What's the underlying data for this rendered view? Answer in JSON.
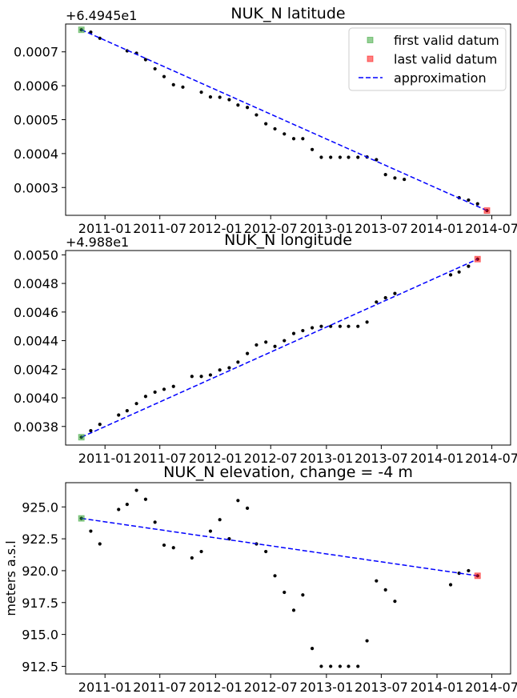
{
  "chart_data": [
    {
      "type": "scatter",
      "title": "NUK_N latitude",
      "ylabel": "",
      "offset_label": "+6.4945e1",
      "x_ticks": [
        "2011-01",
        "2011-07",
        "2012-01",
        "2012-07",
        "2013-01",
        "2013-07",
        "2014-01",
        "2014-07"
      ],
      "y_ticks": [
        0.0003,
        0.0004,
        0.0005,
        0.0006,
        0.0007
      ],
      "y_tick_decimals": 4,
      "ylim": [
        0.000218,
        0.000782
      ],
      "legend": {
        "position": "upper-right",
        "entries": [
          {
            "label": "first valid datum",
            "marker": "square",
            "color": "#2ca02c"
          },
          {
            "label": "last valid datum",
            "marker": "square",
            "color": "#ff0000"
          },
          {
            "label": "approximation",
            "marker": "dashed-line",
            "color": "#0000ff"
          }
        ]
      },
      "series": [
        {
          "role": "data",
          "color": "#000000",
          "points": [
            [
              "2010-10-15",
              0.000765
            ],
            [
              "2010-11-15",
              0.000758
            ],
            [
              "2010-12-15",
              0.00074
            ],
            [
              "2011-03-15",
              0.000703
            ],
            [
              "2011-04-15",
              0.000696
            ],
            [
              "2011-05-15",
              0.000677
            ],
            [
              "2011-06-15",
              0.00065
            ],
            [
              "2011-07-15",
              0.000627
            ],
            [
              "2011-08-15",
              0.000603
            ],
            [
              "2011-09-15",
              0.000596
            ],
            [
              "2011-11-15",
              0.000581
            ],
            [
              "2011-12-15",
              0.000567
            ],
            [
              "2012-01-15",
              0.000566
            ],
            [
              "2012-02-15",
              0.000559
            ],
            [
              "2012-03-15",
              0.000543
            ],
            [
              "2012-04-15",
              0.000536
            ],
            [
              "2012-05-15",
              0.000514
            ],
            [
              "2012-06-15",
              0.000488
            ],
            [
              "2012-07-15",
              0.000473
            ],
            [
              "2012-08-15",
              0.000458
            ],
            [
              "2012-09-15",
              0.000444
            ],
            [
              "2012-10-15",
              0.000444
            ],
            [
              "2012-11-15",
              0.000412
            ],
            [
              "2012-12-15",
              0.000389
            ],
            [
              "2013-01-15",
              0.000389
            ],
            [
              "2013-02-15",
              0.000389
            ],
            [
              "2013-03-15",
              0.000389
            ],
            [
              "2013-04-15",
              0.000389
            ],
            [
              "2013-05-15",
              0.00039
            ],
            [
              "2013-06-15",
              0.000382
            ],
            [
              "2013-07-15",
              0.000338
            ],
            [
              "2013-08-15",
              0.000328
            ],
            [
              "2013-09-15",
              0.000324
            ],
            [
              "2014-03-15",
              0.00027
            ],
            [
              "2014-04-15",
              0.000263
            ],
            [
              "2014-05-15",
              0.000252
            ],
            [
              "2014-06-15",
              0.000232
            ]
          ]
        },
        {
          "role": "first",
          "color": "#2ca02c",
          "points": [
            [
              "2010-10-15",
              0.000765
            ]
          ]
        },
        {
          "role": "last",
          "color": "#ff0000",
          "points": [
            [
              "2014-06-15",
              0.000232
            ]
          ]
        },
        {
          "role": "approximation",
          "color": "#0000ff",
          "points": [
            [
              "2010-10-15",
              0.000765
            ],
            [
              "2014-06-15",
              0.000232
            ]
          ]
        }
      ]
    },
    {
      "type": "scatter",
      "title": "NUK_N longitude",
      "ylabel": "",
      "offset_label": "+4.988e1",
      "x_ticks": [
        "2011-01",
        "2011-07",
        "2012-01",
        "2012-07",
        "2013-01",
        "2013-07",
        "2014-01",
        "2014-07"
      ],
      "y_ticks": [
        0.0038,
        0.004,
        0.0042,
        0.0044,
        0.0046,
        0.0048,
        0.005
      ],
      "y_tick_decimals": 4,
      "ylim": [
        0.00367,
        0.00503
      ],
      "series": [
        {
          "role": "data",
          "color": "#000000",
          "points": [
            [
              "2010-10-15",
              0.003725
            ],
            [
              "2010-11-15",
              0.00377
            ],
            [
              "2010-12-15",
              0.003815
            ],
            [
              "2011-02-15",
              0.00388
            ],
            [
              "2011-03-15",
              0.00391
            ],
            [
              "2011-04-15",
              0.00396
            ],
            [
              "2011-05-15",
              0.00401
            ],
            [
              "2011-06-15",
              0.00404
            ],
            [
              "2011-07-15",
              0.00406
            ],
            [
              "2011-08-15",
              0.00408
            ],
            [
              "2011-10-15",
              0.00415
            ],
            [
              "2011-11-15",
              0.00415
            ],
            [
              "2011-12-15",
              0.00416
            ],
            [
              "2012-01-15",
              0.004195
            ],
            [
              "2012-02-15",
              0.00421
            ],
            [
              "2012-03-15",
              0.00425
            ],
            [
              "2012-04-15",
              0.00431
            ],
            [
              "2012-05-15",
              0.00437
            ],
            [
              "2012-06-15",
              0.00439
            ],
            [
              "2012-07-15",
              0.00436
            ],
            [
              "2012-08-15",
              0.0044
            ],
            [
              "2012-09-15",
              0.00445
            ],
            [
              "2012-10-15",
              0.00447
            ],
            [
              "2012-11-15",
              0.00449
            ],
            [
              "2012-12-15",
              0.0045
            ],
            [
              "2013-01-15",
              0.0045
            ],
            [
              "2013-02-15",
              0.0045
            ],
            [
              "2013-03-15",
              0.0045
            ],
            [
              "2013-04-15",
              0.0045
            ],
            [
              "2013-05-15",
              0.00453
            ],
            [
              "2013-06-15",
              0.00467
            ],
            [
              "2013-07-15",
              0.0047
            ],
            [
              "2013-08-15",
              0.00473
            ],
            [
              "2014-02-15",
              0.00486
            ],
            [
              "2014-03-15",
              0.00488
            ],
            [
              "2014-04-15",
              0.00492
            ],
            [
              "2014-05-15",
              0.00497
            ]
          ]
        },
        {
          "role": "first",
          "color": "#2ca02c",
          "points": [
            [
              "2010-10-15",
              0.003725
            ]
          ]
        },
        {
          "role": "last",
          "color": "#ff0000",
          "points": [
            [
              "2014-05-15",
              0.00497
            ]
          ]
        },
        {
          "role": "approximation",
          "color": "#0000ff",
          "points": [
            [
              "2010-10-15",
              0.003725
            ],
            [
              "2014-05-15",
              0.00497
            ]
          ]
        }
      ]
    },
    {
      "type": "scatter",
      "title": "NUK_N elevation, change = -4 m",
      "ylabel": "meters a.s.l",
      "offset_label": "",
      "x_ticks": [
        "2011-01",
        "2011-07",
        "2012-01",
        "2012-07",
        "2013-01",
        "2013-07",
        "2014-01",
        "2014-07"
      ],
      "y_ticks": [
        912.5,
        915.0,
        917.5,
        920.0,
        922.5,
        925.0
      ],
      "y_tick_decimals": 1,
      "ylim": [
        911.9,
        926.9
      ],
      "series": [
        {
          "role": "data",
          "color": "#000000",
          "points": [
            [
              "2010-10-15",
              924.1
            ],
            [
              "2010-11-15",
              923.1
            ],
            [
              "2010-12-15",
              922.1
            ],
            [
              "2011-02-15",
              924.8
            ],
            [
              "2011-03-15",
              925.2
            ],
            [
              "2011-04-15",
              926.3
            ],
            [
              "2011-05-15",
              925.6
            ],
            [
              "2011-06-15",
              923.8
            ],
            [
              "2011-07-15",
              922.0
            ],
            [
              "2011-08-15",
              921.8
            ],
            [
              "2011-10-15",
              921.0
            ],
            [
              "2011-11-15",
              921.5
            ],
            [
              "2011-12-15",
              923.1
            ],
            [
              "2012-01-15",
              924.0
            ],
            [
              "2012-02-15",
              922.5
            ],
            [
              "2012-03-15",
              925.5
            ],
            [
              "2012-04-15",
              924.9
            ],
            [
              "2012-05-15",
              922.1
            ],
            [
              "2012-06-15",
              921.5
            ],
            [
              "2012-07-15",
              919.6
            ],
            [
              "2012-08-15",
              918.3
            ],
            [
              "2012-09-15",
              916.9
            ],
            [
              "2012-10-15",
              918.1
            ],
            [
              "2012-11-15",
              913.9
            ],
            [
              "2012-12-15",
              912.5
            ],
            [
              "2013-01-15",
              912.5
            ],
            [
              "2013-02-15",
              912.5
            ],
            [
              "2013-03-15",
              912.5
            ],
            [
              "2013-04-15",
              912.5
            ],
            [
              "2013-05-15",
              914.5
            ],
            [
              "2013-06-15",
              919.2
            ],
            [
              "2013-07-15",
              918.5
            ],
            [
              "2013-08-15",
              917.6
            ],
            [
              "2014-02-15",
              918.9
            ],
            [
              "2014-03-15",
              919.8
            ],
            [
              "2014-04-15",
              920.0
            ],
            [
              "2014-05-15",
              919.6
            ]
          ]
        },
        {
          "role": "first",
          "color": "#2ca02c",
          "points": [
            [
              "2010-10-15",
              924.1
            ]
          ]
        },
        {
          "role": "last",
          "color": "#ff0000",
          "points": [
            [
              "2014-05-15",
              919.6
            ]
          ]
        },
        {
          "role": "approximation",
          "color": "#0000ff",
          "points": [
            [
              "2010-10-15",
              924.1
            ],
            [
              "2014-05-15",
              919.6
            ]
          ]
        }
      ]
    }
  ]
}
